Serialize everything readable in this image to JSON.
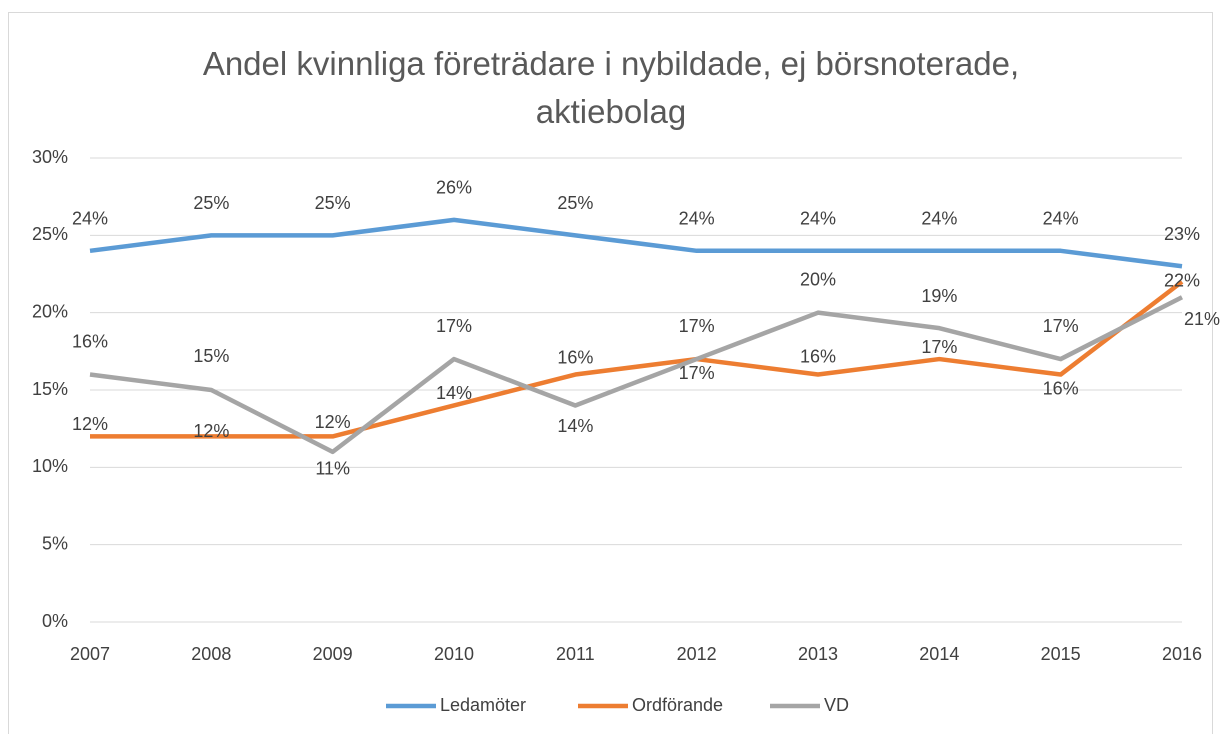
{
  "chart_data": {
    "type": "line",
    "title": "Andel kvinnliga företrädare i nybildade, ej börsnoterade, aktiebolag",
    "categories": [
      "2007",
      "2008",
      "2009",
      "2010",
      "2011",
      "2012",
      "2013",
      "2014",
      "2015",
      "2016"
    ],
    "series": [
      {
        "name": "Ledamöter",
        "color": "#5b9bd5",
        "values": [
          24,
          25,
          25,
          26,
          25,
          24,
          24,
          24,
          24,
          23
        ],
        "value_labels": [
          "24%",
          "25%",
          "25%",
          "26%",
          "25%",
          "24%",
          "24%",
          "24%",
          "24%",
          "23%"
        ]
      },
      {
        "name": "Ordförande",
        "color": "#ed7d31",
        "values": [
          12,
          12,
          12,
          14,
          16,
          17,
          16,
          17,
          16,
          22
        ],
        "value_labels": [
          "12%",
          "12%",
          "12%",
          "14%",
          "16%",
          "17%",
          "16%",
          "17%",
          "16%",
          "22%"
        ]
      },
      {
        "name": "VD",
        "color": "#a5a5a5",
        "values": [
          16,
          15,
          11,
          17,
          14,
          17,
          20,
          19,
          17,
          21
        ],
        "value_labels": [
          "16%",
          "15%",
          "11%",
          "17%",
          "14%",
          "17%",
          "20%",
          "19%",
          "17%",
          "21%"
        ]
      }
    ],
    "ylim": [
      0,
      30
    ],
    "yticks": [
      {
        "value": 0,
        "label": "0%"
      },
      {
        "value": 5,
        "label": "5%"
      },
      {
        "value": 10,
        "label": "10%"
      },
      {
        "value": 15,
        "label": "15%"
      },
      {
        "value": 20,
        "label": "20%"
      },
      {
        "value": 25,
        "label": "25%"
      },
      {
        "value": 30,
        "label": "30%"
      }
    ],
    "grid": true,
    "legend": "bottom"
  }
}
